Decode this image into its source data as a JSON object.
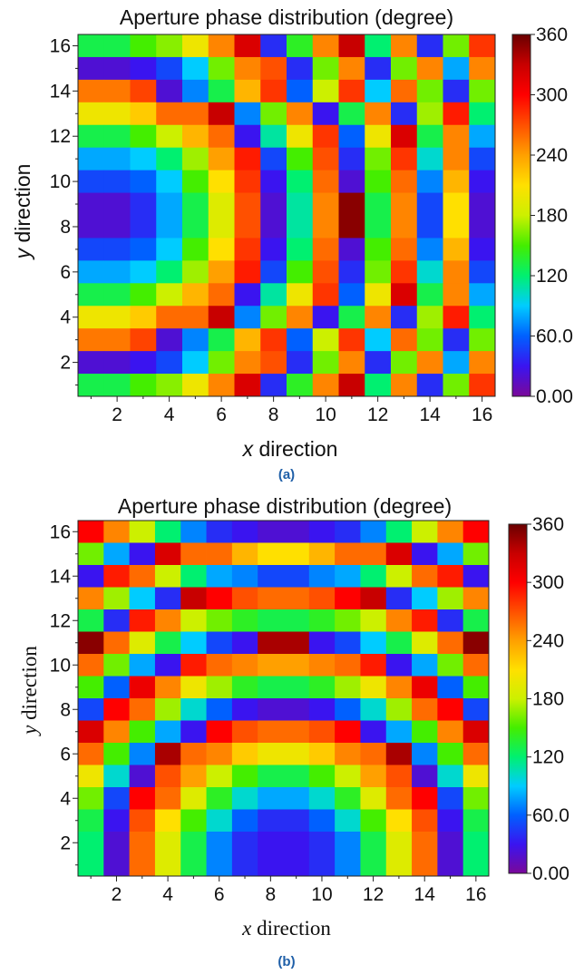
{
  "colorbar": {
    "min": 0,
    "max": 360,
    "tick_values": [
      0,
      60,
      120,
      180,
      240,
      300,
      360
    ],
    "tick_labels": [
      "0.00",
      "60.0",
      "120",
      "180",
      "240",
      "300",
      "360"
    ],
    "colormap": [
      "#7a0899",
      "#3a14f0",
      "#0060ff",
      "#00ccff",
      "#00f070",
      "#44ee00",
      "#ccf000",
      "#ffe000",
      "#ffa000",
      "#ff5000",
      "#ff0000",
      "#c80000",
      "#6a0000"
    ]
  },
  "chart_data": [
    {
      "type": "heatmap",
      "panel_label": "(a)",
      "title": "Aperture phase distribution (degree)",
      "xlabel_var": "x",
      "xlabel_rest": " direction",
      "ylabel_var": "y",
      "ylabel_rest": " direction",
      "xlim": [
        0.5,
        16.5
      ],
      "ylim": [
        0.5,
        16.5
      ],
      "xticks": [
        2,
        4,
        6,
        8,
        10,
        12,
        14,
        16
      ],
      "yticks": [
        2,
        4,
        6,
        8,
        10,
        12,
        14,
        16
      ],
      "zlim": [
        0,
        360
      ],
      "rows_top_to_bottom": [
        [
          130,
          130,
          150,
          165,
          200,
          250,
          320,
          40,
          140,
          250,
          330,
          120,
          250,
          40,
          160,
          280
        ],
        [
          20,
          20,
          30,
          50,
          90,
          160,
          250,
          270,
          40,
          160,
          250,
          40,
          160,
          250,
          80,
          250
        ],
        [
          255,
          255,
          275,
          20,
          70,
          130,
          230,
          280,
          60,
          180,
          280,
          90,
          260,
          160,
          40,
          160
        ],
        [
          200,
          200,
          220,
          260,
          260,
          330,
          70,
          160,
          250,
          30,
          130,
          250,
          40,
          170,
          290,
          120
        ],
        [
          130,
          130,
          150,
          180,
          230,
          260,
          30,
          110,
          200,
          280,
          60,
          200,
          320,
          130,
          250,
          80
        ],
        [
          80,
          80,
          90,
          120,
          170,
          240,
          290,
          50,
          150,
          270,
          40,
          160,
          280,
          100,
          250,
          50
        ],
        [
          50,
          50,
          60,
          90,
          150,
          210,
          280,
          30,
          120,
          260,
          20,
          150,
          260,
          70,
          230,
          30
        ],
        [
          20,
          20,
          40,
          80,
          130,
          190,
          270,
          20,
          110,
          250,
          350,
          130,
          250,
          50,
          210,
          20
        ],
        [
          20,
          20,
          40,
          80,
          130,
          190,
          270,
          20,
          110,
          250,
          350,
          130,
          250,
          50,
          210,
          20
        ],
        [
          50,
          50,
          60,
          90,
          150,
          210,
          280,
          30,
          120,
          260,
          20,
          150,
          260,
          70,
          230,
          30
        ],
        [
          80,
          80,
          90,
          120,
          170,
          240,
          290,
          50,
          150,
          270,
          40,
          160,
          280,
          100,
          250,
          50
        ],
        [
          130,
          130,
          150,
          180,
          230,
          260,
          30,
          110,
          200,
          280,
          60,
          200,
          320,
          130,
          250,
          80
        ],
        [
          200,
          200,
          220,
          260,
          260,
          330,
          70,
          160,
          250,
          30,
          130,
          250,
          40,
          170,
          290,
          120
        ],
        [
          255,
          255,
          275,
          20,
          70,
          130,
          230,
          280,
          60,
          180,
          280,
          90,
          260,
          160,
          40,
          160
        ],
        [
          20,
          20,
          30,
          50,
          90,
          160,
          250,
          270,
          40,
          160,
          250,
          40,
          160,
          250,
          80,
          250
        ],
        [
          130,
          130,
          150,
          165,
          200,
          250,
          320,
          40,
          140,
          250,
          330,
          120,
          250,
          40,
          160,
          280
        ]
      ]
    },
    {
      "type": "heatmap",
      "panel_label": "(b)",
      "title": "Aperture phase distribution (degree)",
      "xlabel_var": "x",
      "xlabel_rest": " direction",
      "ylabel_var": "y",
      "ylabel_rest": " direction",
      "xlim": [
        0.5,
        16.5
      ],
      "ylim": [
        0.5,
        16.5
      ],
      "xticks": [
        2,
        4,
        6,
        8,
        10,
        12,
        14,
        16
      ],
      "yticks": [
        2,
        4,
        6,
        8,
        10,
        12,
        14,
        16
      ],
      "zlim": [
        0,
        360
      ],
      "rows_top_to_bottom": [
        [
          300,
          250,
          180,
          120,
          70,
          40,
          30,
          20,
          20,
          30,
          40,
          70,
          120,
          180,
          250,
          300
        ],
        [
          160,
          80,
          30,
          320,
          260,
          260,
          230,
          210,
          210,
          230,
          260,
          260,
          320,
          30,
          80,
          160
        ],
        [
          30,
          290,
          260,
          180,
          120,
          80,
          70,
          50,
          50,
          70,
          80,
          120,
          180,
          260,
          290,
          30
        ],
        [
          250,
          170,
          90,
          40,
          330,
          300,
          270,
          260,
          260,
          270,
          300,
          330,
          40,
          90,
          170,
          250
        ],
        [
          130,
          40,
          290,
          250,
          180,
          160,
          140,
          130,
          130,
          140,
          160,
          180,
          250,
          290,
          40,
          130
        ],
        [
          350,
          260,
          190,
          130,
          90,
          50,
          30,
          340,
          340,
          30,
          50,
          90,
          130,
          190,
          260,
          350
        ],
        [
          260,
          160,
          80,
          30,
          290,
          260,
          250,
          240,
          240,
          250,
          260,
          290,
          30,
          80,
          160,
          260
        ],
        [
          150,
          60,
          310,
          250,
          200,
          170,
          140,
          130,
          130,
          140,
          170,
          200,
          250,
          310,
          60,
          150
        ],
        [
          50,
          300,
          260,
          170,
          100,
          60,
          30,
          20,
          20,
          30,
          60,
          100,
          170,
          260,
          300,
          50
        ],
        [
          320,
          250,
          150,
          80,
          30,
          300,
          270,
          260,
          260,
          270,
          300,
          30,
          80,
          150,
          250,
          320
        ],
        [
          260,
          150,
          70,
          340,
          260,
          250,
          220,
          200,
          200,
          220,
          250,
          260,
          340,
          70,
          150,
          260
        ],
        [
          200,
          100,
          20,
          270,
          240,
          180,
          150,
          130,
          130,
          150,
          180,
          240,
          270,
          20,
          100,
          200
        ],
        [
          160,
          50,
          300,
          260,
          190,
          140,
          100,
          80,
          80,
          100,
          140,
          190,
          260,
          300,
          50,
          160
        ],
        [
          130,
          30,
          270,
          210,
          150,
          100,
          60,
          40,
          40,
          60,
          100,
          150,
          210,
          270,
          30,
          130
        ],
        [
          120,
          20,
          260,
          190,
          130,
          70,
          40,
          30,
          30,
          40,
          70,
          130,
          190,
          260,
          20,
          120
        ],
        [
          120,
          20,
          260,
          190,
          130,
          70,
          40,
          30,
          30,
          40,
          70,
          130,
          190,
          260,
          20,
          120
        ]
      ]
    }
  ]
}
